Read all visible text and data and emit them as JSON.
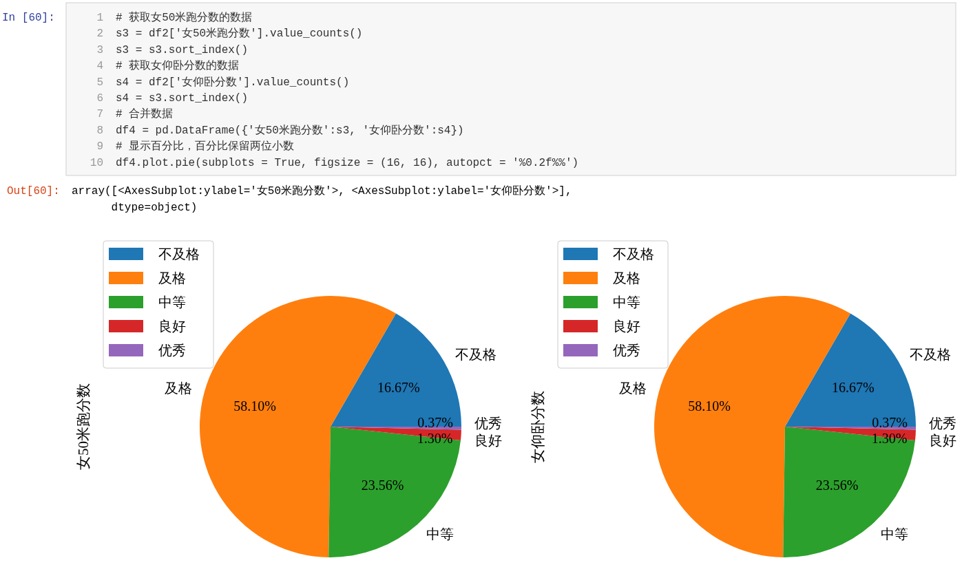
{
  "chart_data": [
    {
      "type": "pie",
      "ylabel": "女50米跑分数",
      "categories": [
        "不及格",
        "及格",
        "中等",
        "良好",
        "优秀"
      ],
      "values": [
        16.67,
        58.1,
        23.56,
        1.3,
        0.37
      ],
      "value_labels": [
        "16.67%",
        "58.10%",
        "23.56%",
        "1.30%",
        "0.37%"
      ],
      "colors": [
        "#1f77b4",
        "#ff7f0e",
        "#2ca02c",
        "#d62728",
        "#9467bd"
      ],
      "legend": "top left",
      "annotations": [
        "In  [60]:",
        "# 获取女50米跑分数的数据",
        "s3 = df2['女50米跑分数'].value_counts()",
        "s3 = s3.sort_index()",
        "# 获取女仰卧分数的数据",
        "s4 = df2['女仰卧分数'].value_counts()",
        "s4 = s3.sort_index()",
        "# 合并数据",
        "df4 = pd.DataFrame({'女50米跑分数':s3, '女仰卧分数':s4})",
        "# 显示百分比，百分比保留两位小数",
        "df4.plot.pie(subplots = True, figsize = (16, 16), autopct = '%0.2f%%')",
        "Out[60]:",
        "array([<AxesSubplot:ylabel='女50米跑分数'>, <AxesSubplot:ylabel='女仰卧分数'>],",
        "      dtype=object)",
        "1",
        "2",
        "3",
        "4",
        "5",
        "6",
        "7",
        "8",
        "9",
        "10"
      ]
    },
    {
      "type": "pie",
      "ylabel": "女仰卧分数",
      "categories": [
        "不及格",
        "及格",
        "中等",
        "良好",
        "优秀"
      ],
      "values": [
        16.67,
        58.1,
        23.56,
        1.3,
        0.37
      ],
      "value_labels": [
        "16.67%",
        "58.10%",
        "23.56%",
        "1.30%",
        "0.37%"
      ],
      "colors": [
        "#1f77b4",
        "#ff7f0e",
        "#2ca02c",
        "#d62728",
        "#9467bd"
      ],
      "legend": "top left"
    }
  ]
}
